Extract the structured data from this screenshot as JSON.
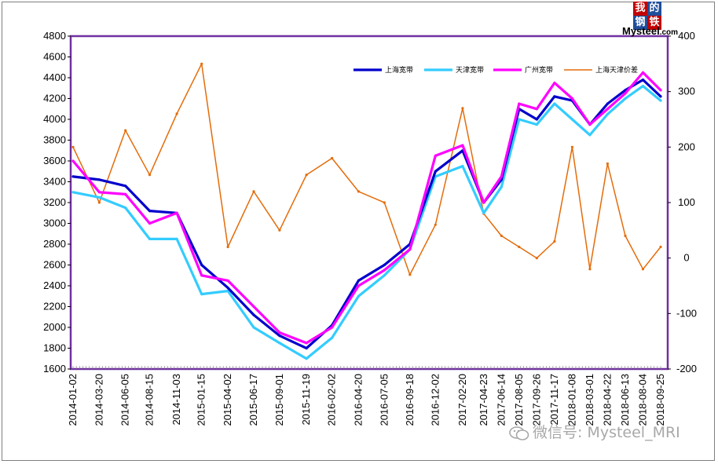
{
  "chart_data": {
    "type": "line",
    "title": "",
    "xlabel": "",
    "ylabel": "",
    "ylim": [
      1600,
      4800
    ],
    "y2lim": [
      -200,
      400
    ],
    "y_ticks": [
      1600,
      1800,
      2000,
      2200,
      2400,
      2600,
      2800,
      3000,
      3200,
      3400,
      3600,
      3800,
      4000,
      4200,
      4400,
      4600,
      4800
    ],
    "y2_ticks": [
      -200,
      -100,
      0,
      100,
      200,
      300,
      400
    ],
    "x_tick_labels": [
      "2014-01-02",
      "2014-03-20",
      "2014-06-05",
      "2014-08-15",
      "2014-11-03",
      "2015-01-15",
      "2015-04-02",
      "2015-06-17",
      "2015-09-01",
      "2015-11-19",
      "2016-02-02",
      "2016-04-20",
      "2016-07-05",
      "2016-09-18",
      "2016-12-02",
      "2017-02-20",
      "2017-04-23",
      "2017-06-14",
      "2017-08-05",
      "2017-09-26",
      "2017-11-17",
      "2018-01-08",
      "2018-03-01",
      "2018-04-22",
      "2018-06-13",
      "2018-08-04",
      "2018-09-25"
    ],
    "grid": false,
    "legend_position": "top-right",
    "series": [
      {
        "name": "上海宽带",
        "axis": "left",
        "color": "#0000cc",
        "x": [
          "2014-01-02",
          "2014-03-20",
          "2014-06-05",
          "2014-08-15",
          "2014-11-03",
          "2015-01-15",
          "2015-04-02",
          "2015-06-17",
          "2015-09-01",
          "2015-11-19",
          "2016-02-02",
          "2016-04-20",
          "2016-07-05",
          "2016-09-18",
          "2016-12-02",
          "2017-02-20",
          "2017-04-23",
          "2017-06-14",
          "2017-08-05",
          "2017-09-26",
          "2017-11-17",
          "2018-01-08",
          "2018-03-01",
          "2018-04-22",
          "2018-06-13",
          "2018-08-04",
          "2018-09-25"
        ],
        "values": [
          3450,
          3420,
          3360,
          3120,
          3100,
          2600,
          2380,
          2120,
          1920,
          1800,
          2020,
          2450,
          2600,
          2800,
          3500,
          3700,
          3200,
          3420,
          4100,
          4000,
          4220,
          4180,
          3950,
          4150,
          4280,
          4380,
          4220
        ]
      },
      {
        "name": "天津宽带",
        "axis": "left",
        "color": "#33ccff",
        "x": [
          "2014-01-02",
          "2014-03-20",
          "2014-06-05",
          "2014-08-15",
          "2014-11-03",
          "2015-01-15",
          "2015-04-02",
          "2015-06-17",
          "2015-09-01",
          "2015-11-19",
          "2016-02-02",
          "2016-04-20",
          "2016-07-05",
          "2016-09-18",
          "2016-12-02",
          "2017-02-20",
          "2017-04-23",
          "2017-06-14",
          "2017-08-05",
          "2017-09-26",
          "2017-11-17",
          "2018-01-08",
          "2018-03-01",
          "2018-04-22",
          "2018-06-13",
          "2018-08-04",
          "2018-09-25"
        ],
        "values": [
          3300,
          3250,
          3150,
          2850,
          2850,
          2320,
          2350,
          2000,
          1850,
          1700,
          1900,
          2300,
          2500,
          2750,
          3450,
          3550,
          3100,
          3350,
          4000,
          3950,
          4150,
          4000,
          3850,
          4050,
          4200,
          4320,
          4180
        ]
      },
      {
        "name": "广州宽带",
        "axis": "left",
        "color": "#ff00ff",
        "x": [
          "2014-01-02",
          "2014-03-20",
          "2014-06-05",
          "2014-08-15",
          "2014-11-03",
          "2015-01-15",
          "2015-04-02",
          "2015-06-17",
          "2015-09-01",
          "2015-11-19",
          "2016-02-02",
          "2016-04-20",
          "2016-07-05",
          "2016-09-18",
          "2016-12-02",
          "2017-02-20",
          "2017-04-23",
          "2017-06-14",
          "2017-08-05",
          "2017-09-26",
          "2017-11-17",
          "2018-01-08",
          "2018-03-01",
          "2018-04-22",
          "2018-06-13",
          "2018-08-04",
          "2018-09-25"
        ],
        "values": [
          3600,
          3300,
          3280,
          3000,
          3100,
          2500,
          2450,
          2200,
          1950,
          1850,
          2000,
          2400,
          2550,
          2750,
          3650,
          3750,
          3200,
          3450,
          4150,
          4100,
          4350,
          4200,
          3950,
          4100,
          4250,
          4450,
          4280
        ]
      },
      {
        "name": "上海天津价差",
        "axis": "right",
        "color": "#e46c0a",
        "x": [
          "2014-01-02",
          "2014-03-20",
          "2014-06-05",
          "2014-08-15",
          "2014-11-03",
          "2015-01-15",
          "2015-04-02",
          "2015-06-17",
          "2015-09-01",
          "2015-11-19",
          "2016-02-02",
          "2016-04-20",
          "2016-07-05",
          "2016-09-18",
          "2016-12-02",
          "2017-02-20",
          "2017-04-23",
          "2017-06-14",
          "2017-08-05",
          "2017-09-26",
          "2017-11-17",
          "2018-01-08",
          "2018-03-01",
          "2018-04-22",
          "2018-06-13",
          "2018-08-04",
          "2018-09-25"
        ],
        "values": [
          200,
          100,
          230,
          150,
          260,
          350,
          20,
          120,
          50,
          150,
          180,
          120,
          100,
          -30,
          60,
          270,
          80,
          40,
          20,
          0,
          30,
          200,
          -20,
          170,
          40,
          -20,
          20
        ]
      }
    ]
  },
  "logo": {
    "chars": [
      "我",
      "的",
      "钢",
      "铁"
    ],
    "name": "Mysteel",
    "suffix": ".com"
  },
  "watermark": {
    "text": "微信号: Mysteel_MRI"
  }
}
